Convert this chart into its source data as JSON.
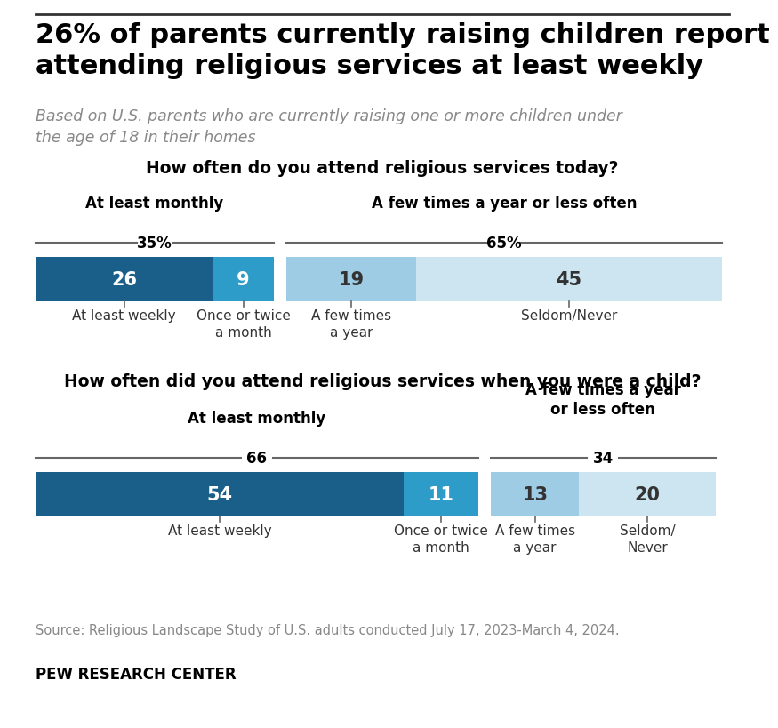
{
  "title": "26% of parents currently raising children report\nattending religious services at least weekly",
  "subtitle": "Based on U.S. parents who are currently raising one or more children under\nthe age of 18 in their homes",
  "chart1_question": "How often do you attend religious services today?",
  "chart2_question": "How often did you attend religious services when you were a child?",
  "chart1": {
    "group1_label": "At least monthly",
    "group2_label": "A few times a year or less often",
    "group1_pct": "35%",
    "group2_pct": "65%",
    "bars": [
      {
        "value": 26,
        "color": "#1a5f8a",
        "label": "At least weekly",
        "text_color": "white"
      },
      {
        "value": 9,
        "color": "#2e9cc8",
        "label": "Once or twice\na month",
        "text_color": "white"
      },
      {
        "value": 19,
        "color": "#9ecce4",
        "label": "A few times\na year",
        "text_color": "#333333"
      },
      {
        "value": 45,
        "color": "#cce5f0",
        "label": "Seldom/Never",
        "text_color": "#333333"
      }
    ]
  },
  "chart2": {
    "group1_label": "At least monthly",
    "group2_label": "A few times a year\nor less often",
    "group1_pct": "66",
    "group2_pct": "34",
    "bars": [
      {
        "value": 54,
        "color": "#1a5f8a",
        "label": "At least weekly",
        "text_color": "white"
      },
      {
        "value": 11,
        "color": "#2e9cc8",
        "label": "Once or twice\na month",
        "text_color": "white"
      },
      {
        "value": 13,
        "color": "#9ecce4",
        "label": "A few times\na year",
        "text_color": "#333333"
      },
      {
        "value": 20,
        "color": "#cce5f0",
        "label": "Seldom/\nNever",
        "text_color": "#333333"
      }
    ]
  },
  "source": "Source: Religious Landscape Study of U.S. adults conducted July 17, 2023-March 4, 2024.",
  "footer": "PEW RESEARCH CENTER",
  "bg_color": "#ffffff",
  "title_color": "#000000",
  "subtitle_color": "#888888",
  "question_color": "#000000",
  "group_label_color": "#000000",
  "pct_label_color": "#000000",
  "tick_label_color": "#333333",
  "source_color": "#888888",
  "footer_color": "#000000"
}
